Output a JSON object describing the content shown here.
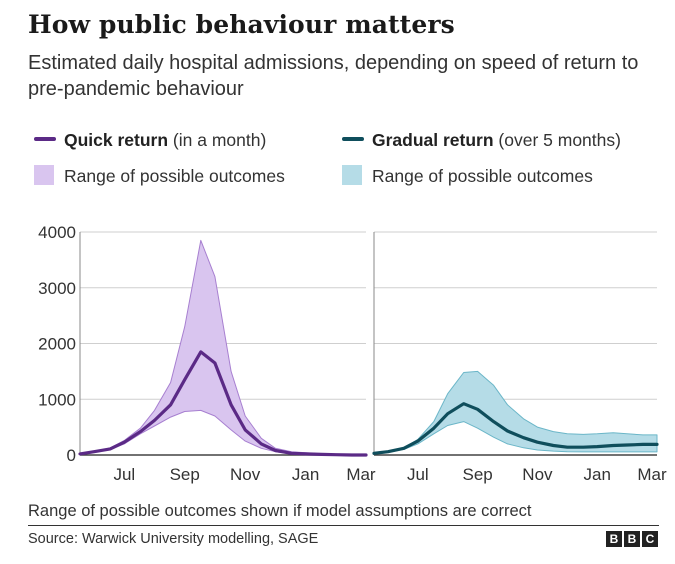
{
  "header": {
    "title": "How public behaviour matters",
    "subtitle": "Estimated daily hospital admissions, depending on speed of return to pre-pandemic behaviour"
  },
  "legend": {
    "quick": {
      "bold": "Quick return",
      "rest": " (in a month)",
      "color": "#5b2a86"
    },
    "quick_range": {
      "label": "Range of possible outcomes",
      "color": "#d9c5ef"
    },
    "gradual": {
      "bold": "Gradual return",
      "rest": " (over 5 months)",
      "color": "#0f4e5c"
    },
    "gradual_range": {
      "label": "Range of possible outcomes",
      "color": "#b5dce7"
    }
  },
  "chart_data": [
    {
      "type": "area",
      "title": "Quick return (in a month)",
      "x_ticks": [
        "Jul",
        "Sep",
        "Nov",
        "Jan",
        "Mar"
      ],
      "y_ticks": [
        "0",
        "1000",
        "2000",
        "3000",
        "4000"
      ],
      "ylim": [
        0,
        4000
      ],
      "grid": true,
      "x": [
        "Jun 1",
        "Jun 15",
        "Jul 1",
        "Jul 15",
        "Aug 1",
        "Aug 15",
        "Sep 1",
        "Sep 15",
        "Oct 1",
        "Oct 15",
        "Nov 1",
        "Nov 15",
        "Dec 1",
        "Dec 15",
        "Jan 1",
        "Jan 15",
        "Feb 1",
        "Feb 15",
        "Mar 1",
        "Mar 15"
      ],
      "series": [
        {
          "name": "Quick return",
          "color": "#5b2a86",
          "values": [
            20,
            60,
            110,
            230,
            420,
            620,
            900,
            1350,
            1850,
            1650,
            900,
            450,
            200,
            80,
            30,
            20,
            10,
            5,
            0,
            0
          ]
        }
      ],
      "band": {
        "name": "Range of possible outcomes",
        "color": "#d9c5ef",
        "lower": [
          20,
          60,
          100,
          200,
          380,
          520,
          680,
          780,
          800,
          700,
          450,
          250,
          120,
          60,
          25,
          15,
          8,
          3,
          0,
          0
        ],
        "upper": [
          20,
          60,
          130,
          260,
          480,
          800,
          1300,
          2300,
          3850,
          3200,
          1500,
          700,
          300,
          120,
          60,
          40,
          20,
          10,
          0,
          0
        ]
      }
    },
    {
      "type": "area",
      "title": "Gradual return (over 5 months)",
      "x_ticks": [
        "Jul",
        "Sep",
        "Nov",
        "Jan",
        "Mar"
      ],
      "ylim": [
        0,
        4000
      ],
      "grid": true,
      "x": [
        "Jun 1",
        "Jun 15",
        "Jul 1",
        "Jul 15",
        "Aug 1",
        "Aug 15",
        "Sep 1",
        "Sep 15",
        "Oct 1",
        "Oct 15",
        "Nov 1",
        "Nov 15",
        "Dec 1",
        "Dec 15",
        "Jan 1",
        "Jan 15",
        "Feb 1",
        "Feb 15",
        "Mar 1",
        "Mar 15"
      ],
      "series": [
        {
          "name": "Gradual return",
          "color": "#0f4e5c",
          "values": [
            30,
            60,
            120,
            250,
            480,
            740,
            920,
            820,
            600,
            430,
            310,
            230,
            170,
            140,
            140,
            150,
            170,
            180,
            190,
            190
          ]
        }
      ],
      "band": {
        "name": "Range of possible outcomes",
        "color": "#b5dce7",
        "lower": [
          30,
          60,
          100,
          200,
          380,
          530,
          600,
          480,
          320,
          200,
          130,
          90,
          70,
          60,
          55,
          55,
          55,
          55,
          55,
          55
        ],
        "upper": [
          30,
          60,
          130,
          280,
          600,
          1100,
          1480,
          1500,
          1250,
          900,
          650,
          500,
          420,
          380,
          370,
          380,
          400,
          380,
          360,
          360
        ]
      }
    }
  ],
  "footer": {
    "note": "Range of possible outcomes shown if model assumptions are correct",
    "source": "Source: Warwick University modelling, SAGE",
    "logo": [
      "B",
      "B",
      "C"
    ]
  }
}
